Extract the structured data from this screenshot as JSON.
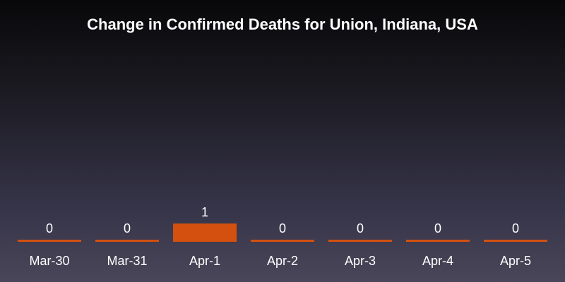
{
  "chart_data": {
    "type": "bar",
    "title": "Change in Confirmed Deaths for Union, Indiana, USA",
    "categories": [
      "Mar-30",
      "Mar-31",
      "Apr-1",
      "Apr-2",
      "Apr-3",
      "Apr-4",
      "Apr-5"
    ],
    "values": [
      0,
      0,
      1,
      0,
      0,
      0,
      0
    ],
    "data_labels": [
      "0",
      "0",
      "1",
      "0",
      "0",
      "0",
      "0"
    ],
    "xlabel": "",
    "ylabel": "",
    "ylim": [
      0,
      1
    ],
    "grid": false,
    "legend": "none",
    "bar_color": "#d4500f"
  }
}
